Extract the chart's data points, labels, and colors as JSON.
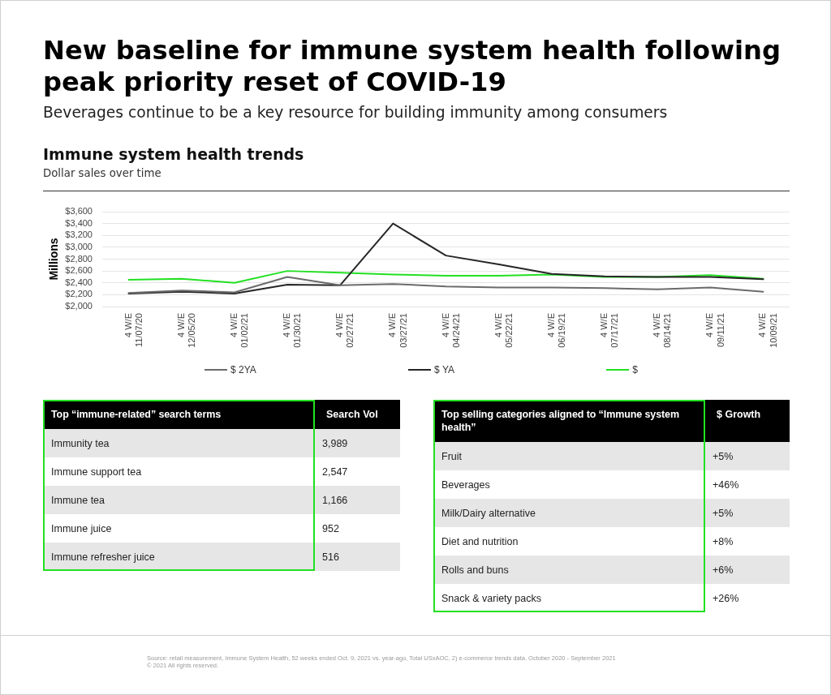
{
  "chart_data": [
    {
      "type": "other",
      "title": "New baseline for immune system health following peak priority reset of COVID-19",
      "subtitle": "Beverages continue to be a key resource for building immunity among consumers"
    },
    {
      "type": "line",
      "title": "Immune system health trends",
      "subtitle": "Dollar sales over time",
      "ylabel": "Millions",
      "categories": [
        "4 W/E\n11/07/20",
        "4 W/E\n12/05/20",
        "4 W/E\n01/02/21",
        "4 W/E\n01/30/21",
        "4 W/E\n02/27/21",
        "4 W/E\n03/27/21",
        "4 W/E\n04/24/21",
        "4 W/E\n05/22/21",
        "4 W/E\n06/19/21",
        "4 W/E\n07/17/21",
        "4 W/E\n08/14/21",
        "4 W/E\n09/11/21",
        "4 W/E\n10/09/21"
      ],
      "series": [
        {
          "name": "$ 2YA",
          "color": "#6b6b6b",
          "values": [
            2230,
            2270,
            2240,
            2500,
            2360,
            2380,
            2340,
            2320,
            2320,
            2310,
            2290,
            2320,
            2250
          ]
        },
        {
          "name": "$ YA",
          "color": "#262626",
          "values": [
            2220,
            2250,
            2220,
            2370,
            2360,
            3400,
            2860,
            2710,
            2550,
            2510,
            2500,
            2500,
            2460
          ]
        },
        {
          "name": "$",
          "color": "#22e022",
          "values": [
            2450,
            2470,
            2400,
            2600,
            2570,
            2540,
            2520,
            2520,
            2540,
            2500,
            2500,
            2530,
            2470
          ]
        }
      ],
      "ylim": [
        2000,
        3600
      ],
      "yticks": [
        {
          "value": 2000,
          "label": "$2,000"
        },
        {
          "value": 2200,
          "label": "$2,200"
        },
        {
          "value": 2400,
          "label": "$2,400"
        },
        {
          "value": 2600,
          "label": "$2,600"
        },
        {
          "value": 2800,
          "label": "$2,800"
        },
        {
          "value": 3000,
          "label": "$3,000"
        },
        {
          "value": 3200,
          "label": "$3,200"
        },
        {
          "value": 3400,
          "label": "$3,400"
        },
        {
          "value": 3600,
          "label": "$3,600"
        }
      ],
      "grid": "y",
      "legend": "bottom",
      "marker": "none"
    },
    {
      "type": "other",
      "title": "Top “immune-related” search terms",
      "ylabel": "Search Vol",
      "categories": [
        "Immunity tea",
        "Immune support tea",
        "Immune tea",
        "Immune juice",
        "Immune refresher juice"
      ],
      "value_labels": [
        "3,989",
        "2,547",
        "1,166",
        "952",
        "516"
      ]
    },
    {
      "type": "other",
      "title": "Top selling categories aligned to “Immune system health”",
      "ylabel": "$ Growth",
      "categories": [
        "Fruit",
        "Beverages",
        "Milk/Dairy alternative",
        "Diet and nutrition",
        "Rolls and buns",
        "Snack & variety packs"
      ],
      "value_labels": [
        "+5%",
        "+46%",
        "+5%",
        "+8%",
        "+6%",
        "+26%"
      ]
    },
    {
      "type": "other",
      "annotations": [
        "Source: retail measurement, Immune System Health, 52 weeks ended Oct. 9, 2021 vs. year-ago, Total USxAOC, 2) e-commerce trends data. October 2020 - September 2021",
        "© 2021 All rights reserved."
      ]
    }
  ]
}
